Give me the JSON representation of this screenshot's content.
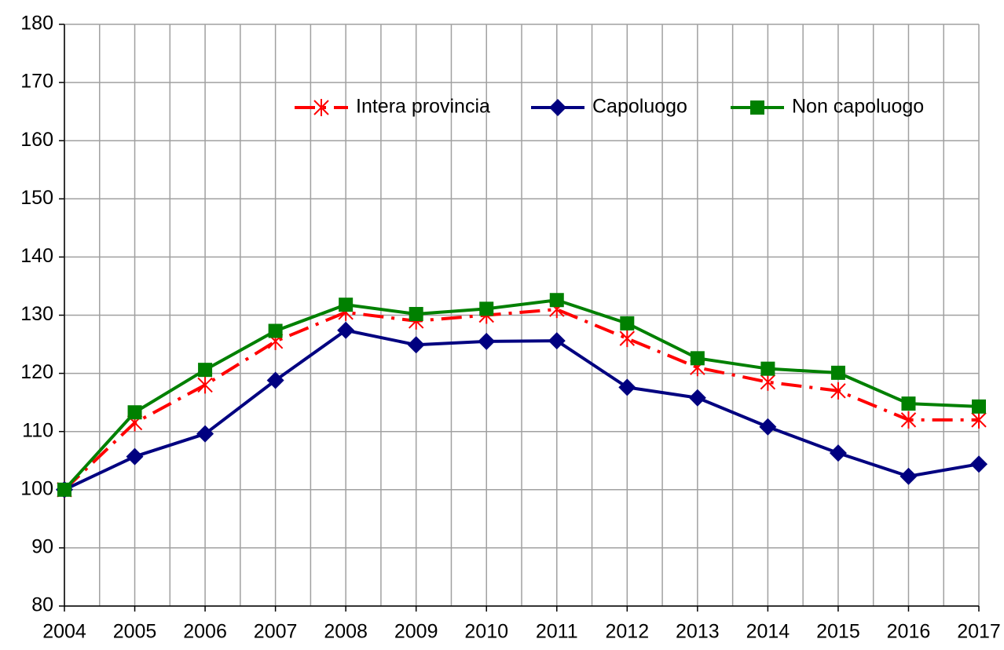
{
  "chart_data": {
    "type": "line",
    "x": [
      2004,
      2005,
      2006,
      2007,
      2008,
      2009,
      2010,
      2011,
      2012,
      2013,
      2014,
      2015,
      2016,
      2017
    ],
    "xlim": [
      2004,
      2017
    ],
    "xticks": [
      2004,
      2005,
      2006,
      2007,
      2008,
      2009,
      2010,
      2011,
      2012,
      2013,
      2014,
      2015,
      2016,
      2017
    ],
    "ylim": [
      80,
      180
    ],
    "yticks": [
      80,
      90,
      100,
      110,
      120,
      130,
      140,
      150,
      160,
      170,
      180
    ],
    "grid": true,
    "legend": "top",
    "series": [
      {
        "name": "Intera provincia",
        "color": "#ff0000",
        "marker": "star",
        "dash": "dashdot",
        "values": [
          100,
          111.5,
          118,
          125.5,
          130.5,
          129,
          130,
          131,
          126,
          121,
          118.5,
          117,
          112,
          112
        ]
      },
      {
        "name": "Capoluogo",
        "color": "#000080",
        "marker": "diamond",
        "dash": "solid",
        "values": [
          100,
          105.7,
          109.6,
          118.8,
          127.4,
          124.9,
          125.5,
          125.6,
          117.6,
          115.8,
          110.8,
          106.3,
          102.3,
          104.4
        ]
      },
      {
        "name": "Non capoluogo",
        "color": "#008000",
        "marker": "square",
        "dash": "solid",
        "values": [
          100,
          113.3,
          120.6,
          127.3,
          131.8,
          130.2,
          131.1,
          132.6,
          128.6,
          122.6,
          120.8,
          120.1,
          114.8,
          114.3
        ]
      }
    ]
  }
}
